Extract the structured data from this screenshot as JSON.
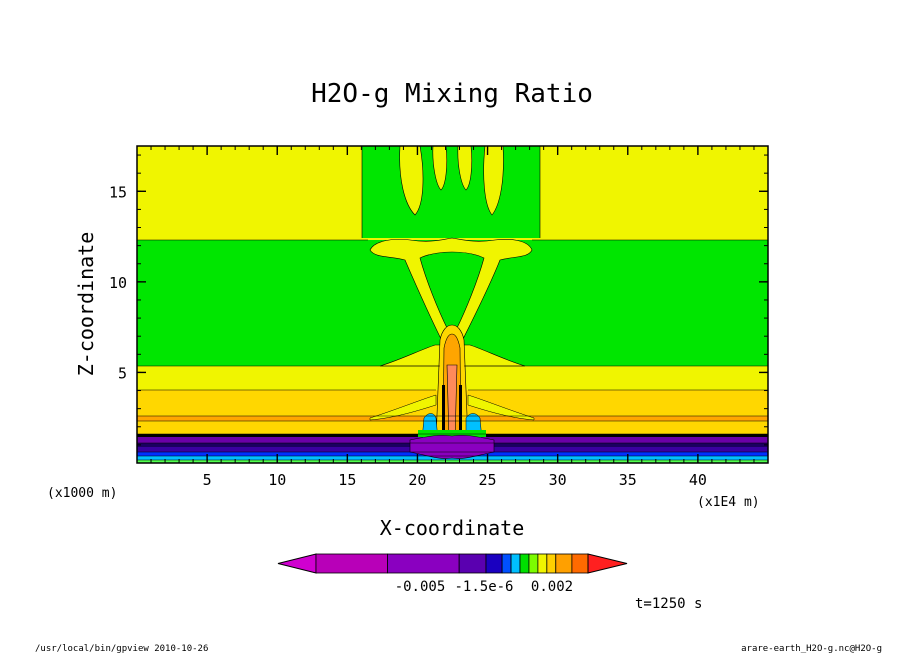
{
  "chart_data": {
    "type": "heatmap",
    "title": "H2O-g Mixing Ratio",
    "xlabel": "X-coordinate",
    "ylabel": "Z-coordinate",
    "x_units": "(x1E4 m)",
    "y_units": "(x1000 m)",
    "xlim": [
      0,
      45
    ],
    "ylim": [
      0,
      17.5
    ],
    "x_ticks": [
      5,
      10,
      15,
      20,
      25,
      30,
      35,
      40
    ],
    "x_tick_labels": [
      "5",
      "10",
      "15",
      "20",
      "25",
      "30",
      "35",
      "40"
    ],
    "y_ticks": [
      5,
      10,
      15
    ],
    "y_tick_labels": [
      "5",
      "10",
      "15"
    ],
    "colors": {
      "yellow": "#f0f500",
      "green": "#00e600",
      "gold": "#ffd700",
      "orange": "#ffa500",
      "salmon": "#ff8a5a",
      "black": "#000000",
      "purple": "#6a00a8",
      "indigo": "#3a00a0",
      "blue": "#0030ff",
      "cyan": "#00c0ff",
      "lightgreen": "#50ff50"
    },
    "colorbar": {
      "colors": [
        "#d000d0",
        "#b800b8",
        "#8a00c0",
        "#5a00b0",
        "#1a00c0",
        "#0050ff",
        "#00bfff",
        "#00e000",
        "#7cfc00",
        "#f0f500",
        "#ffd000",
        "#ffa000",
        "#ff6a00",
        "#ff2020"
      ],
      "labels": [
        "-0.005",
        "-1.5e-6",
        "0.002"
      ]
    },
    "time_label": "t=1250 s",
    "footer_left": "/usr/local/bin/gpview  2010-10-26",
    "footer_right": "arare-earth_H2O-g.nc@H2O-g"
  }
}
